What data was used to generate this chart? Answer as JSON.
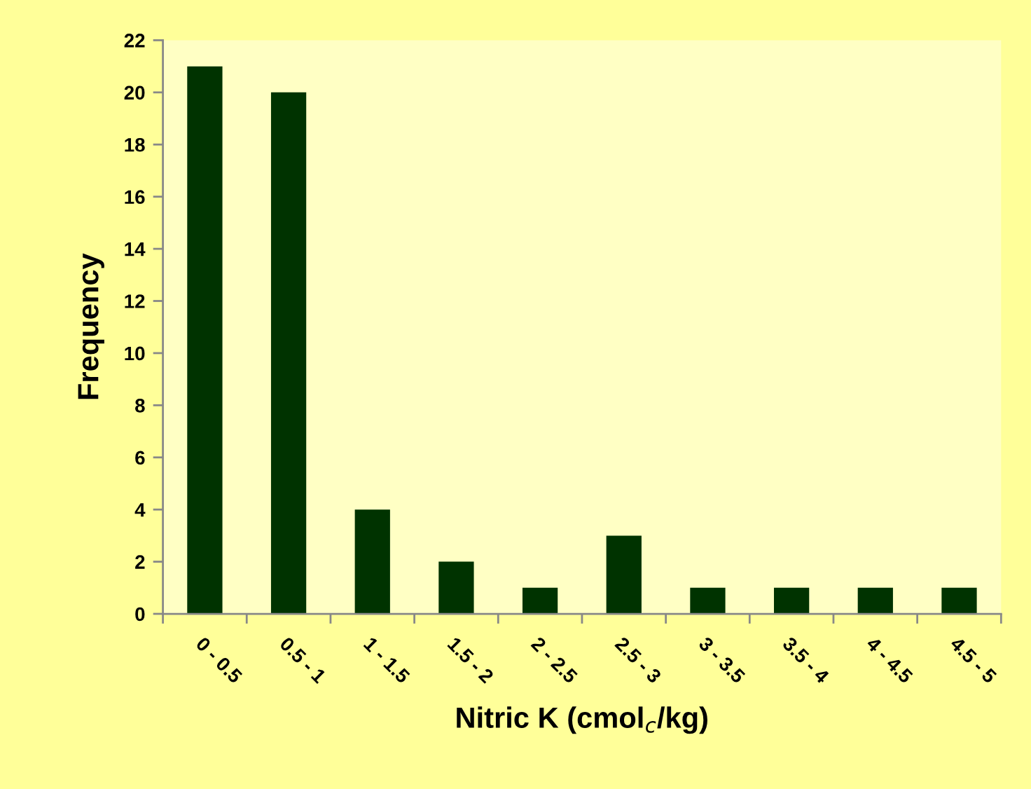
{
  "chart_data": {
    "type": "bar",
    "xlabel": "Nitric K (cmol$_{c}$/kg)",
    "ylabel": "Frequency",
    "categories": [
      "0 - 0.5",
      "0.5 - 1",
      "1 - 1.5",
      "1.5 - 2",
      "2 - 2.5",
      "2.5 - 3",
      "3 - 3.5",
      "3.5 - 4",
      "4 - 4.5",
      "4.5 - 5"
    ],
    "values": [
      21,
      20,
      4,
      2,
      1,
      3,
      1,
      1,
      1,
      1
    ],
    "color": "#003300",
    "ylim": [
      0,
      22
    ],
    "yticks": [
      0,
      2,
      4,
      6,
      8,
      10,
      12,
      14,
      16,
      18,
      20,
      22
    ],
    "grid": false
  }
}
